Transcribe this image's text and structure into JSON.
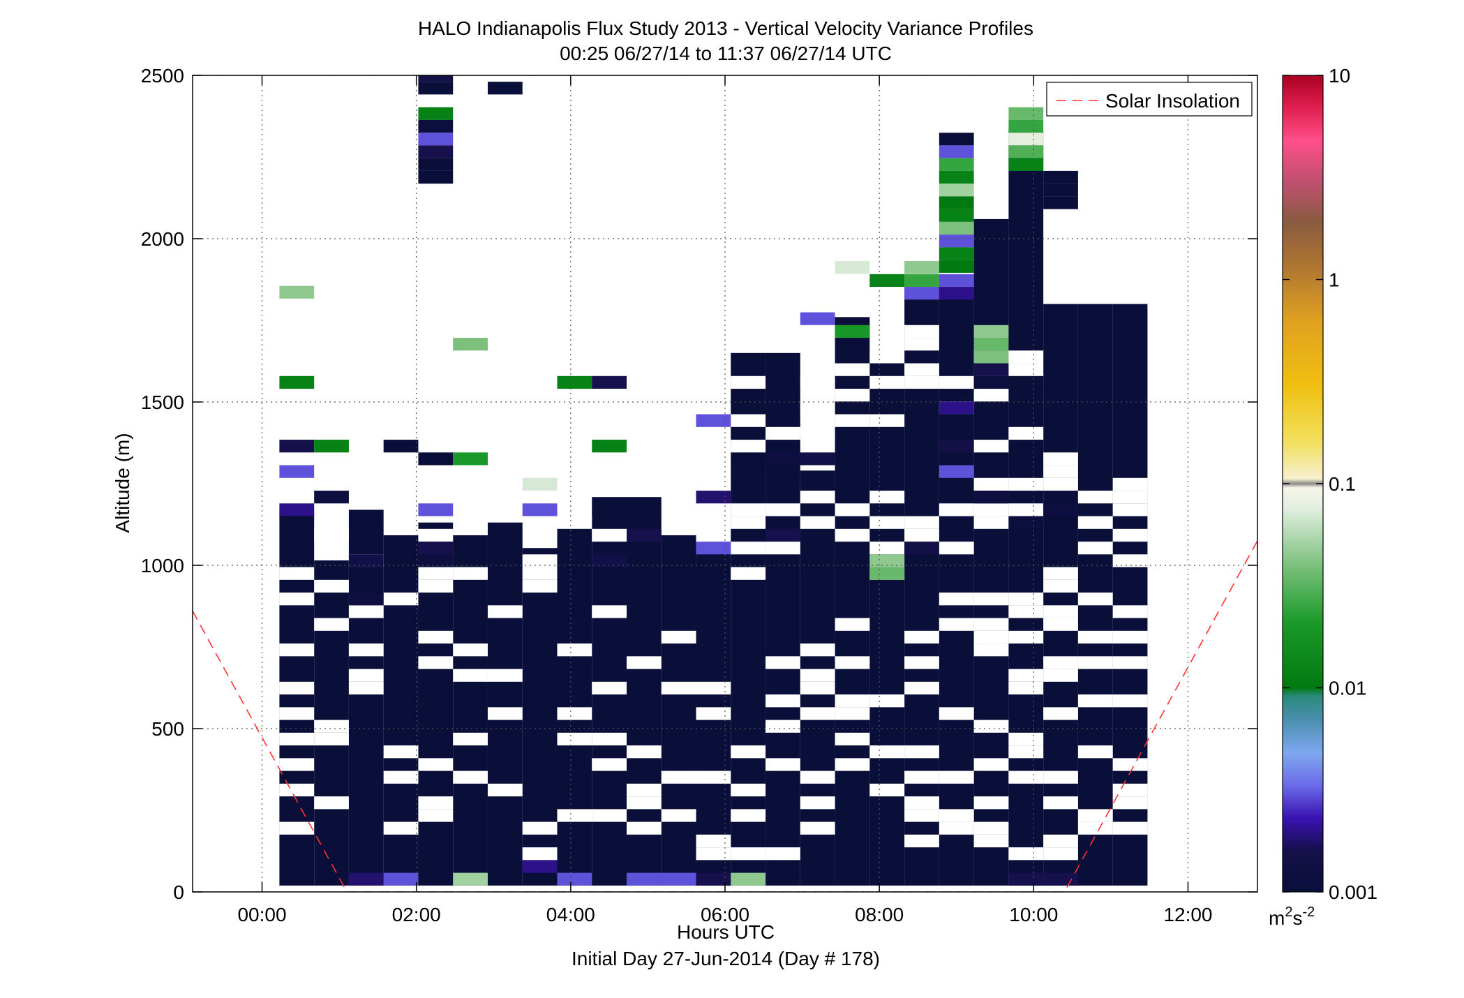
{
  "chart_data": {
    "type": "heatmap",
    "title": "HALO Indianapolis Flux Study 2013 - Vertical Velocity Variance Profiles",
    "subtitle": "00:25 06/27/14 to 11:37 06/27/14  UTC",
    "xlabel": "Hours UTC",
    "xlabel2": "Initial Day 27-Jun-2014 (Day # 178)",
    "ylabel": "Altitude (m)",
    "xlim": [
      -0.9,
      12.9
    ],
    "ylim": [
      0,
      2500
    ],
    "x_ticks": [
      0,
      2,
      4,
      6,
      8,
      10,
      12
    ],
    "x_tick_labels": [
      "00:00",
      "02:00",
      "04:00",
      "06:00",
      "08:00",
      "10:00",
      "12:00"
    ],
    "y_ticks": [
      0,
      500,
      1000,
      1500,
      2000,
      2500
    ],
    "y_tick_labels": [
      "0",
      "500",
      "1000",
      "1500",
      "2000",
      "2500"
    ],
    "grid": true,
    "legend": {
      "entry": "Solar Insolation",
      "style": "dashed",
      "color": "#ff3030",
      "placement": "top-right"
    },
    "colorbar": {
      "scale": "log",
      "range": [
        0.001,
        10
      ],
      "tick_values": [
        0.001,
        0.01,
        0.1,
        1,
        10
      ],
      "tick_labels": [
        "0.001",
        "0.01",
        "0.1",
        "1",
        "10"
      ],
      "unit_base": "m",
      "unit_sup1": "2",
      "unit_mid": "s",
      "unit_sup2": "-2"
    },
    "bin_width_hours": 0.45,
    "bin_height_m": 39,
    "profile_times_h": [
      0.45,
      0.9,
      1.35,
      1.8,
      2.25,
      2.7,
      3.15,
      3.6,
      4.05,
      4.5,
      4.95,
      5.4,
      5.85,
      6.3,
      6.75,
      7.2,
      7.65,
      8.1,
      8.55,
      9.0,
      9.45,
      9.9,
      10.35,
      10.8,
      11.25
    ],
    "background_variance": 0.001,
    "background_ranges": [
      [
        [
          39,
          1170
        ]
      ],
      [
        [
          39,
          1015
        ]
      ],
      [
        [
          39,
          1170
        ]
      ],
      [
        [
          39,
          1092
        ]
      ],
      [
        [
          39,
          1131
        ]
      ],
      [
        [
          39,
          1092
        ]
      ],
      [
        [
          39,
          1131
        ]
      ],
      [
        [
          39,
          1053
        ]
      ],
      [
        [
          39,
          1131
        ]
      ],
      [
        [
          39,
          1209
        ]
      ],
      [
        [
          39,
          1209
        ]
      ],
      [
        [
          39,
          1092
        ]
      ],
      [
        [
          39,
          1053
        ]
      ],
      [
        [
          39,
          1650
        ]
      ],
      [
        [
          39,
          1650
        ]
      ],
      [
        [
          39,
          1290
        ]
      ],
      [
        [
          39,
          1760
        ]
      ],
      [
        [
          39,
          1650
        ]
      ],
      [
        [
          39,
          1850
        ]
      ],
      [
        [
          39,
          1850
        ]
      ],
      [
        [
          39,
          2060
        ]
      ],
      [
        [
          39,
          2330
        ]
      ],
      [
        [
          39,
          1800
        ]
      ],
      [
        [
          39,
          1800
        ]
      ],
      [
        [
          39,
          1800
        ]
      ]
    ],
    "blank_cells": [
      [
        0,
        195
      ],
      [
        0,
        312
      ],
      [
        0,
        390
      ],
      [
        0,
        468
      ],
      [
        0,
        546
      ],
      [
        0,
        624
      ],
      [
        0,
        741
      ],
      [
        0,
        897
      ],
      [
        0,
        975
      ],
      [
        1,
        273
      ],
      [
        1,
        468
      ],
      [
        1,
        507
      ],
      [
        1,
        819
      ],
      [
        1,
        936
      ],
      [
        1,
        1092
      ],
      [
        2,
        624
      ],
      [
        2,
        663
      ],
      [
        2,
        741
      ],
      [
        2,
        858
      ],
      [
        2,
        1014
      ],
      [
        3,
        195
      ],
      [
        3,
        351
      ],
      [
        3,
        429
      ],
      [
        3,
        897
      ],
      [
        4,
        234
      ],
      [
        4,
        273
      ],
      [
        4,
        390
      ],
      [
        4,
        702
      ],
      [
        4,
        780
      ],
      [
        4,
        936
      ],
      [
        4,
        975
      ],
      [
        4,
        1092
      ],
      [
        5,
        351
      ],
      [
        5,
        468
      ],
      [
        5,
        663
      ],
      [
        5,
        741
      ],
      [
        5,
        975
      ],
      [
        6,
        312
      ],
      [
        6,
        546
      ],
      [
        6,
        663
      ],
      [
        6,
        858
      ],
      [
        7,
        117
      ],
      [
        7,
        195
      ],
      [
        7,
        936
      ],
      [
        7,
        975
      ],
      [
        7,
        1014
      ],
      [
        8,
        234
      ],
      [
        8,
        468
      ],
      [
        8,
        546
      ],
      [
        8,
        741
      ],
      [
        8,
        1131
      ],
      [
        9,
        234
      ],
      [
        9,
        390
      ],
      [
        9,
        468
      ],
      [
        9,
        624
      ],
      [
        9,
        858
      ],
      [
        9,
        1092
      ],
      [
        10,
        195
      ],
      [
        10,
        273
      ],
      [
        10,
        312
      ],
      [
        10,
        429
      ],
      [
        10,
        702
      ],
      [
        11,
        234
      ],
      [
        11,
        351
      ],
      [
        11,
        624
      ],
      [
        11,
        780
      ],
      [
        12,
        117
      ],
      [
        12,
        156
      ],
      [
        12,
        351
      ],
      [
        12,
        546
      ],
      [
        12,
        624
      ],
      [
        13,
        117
      ],
      [
        13,
        234
      ],
      [
        13,
        312
      ],
      [
        13,
        429
      ],
      [
        13,
        975
      ],
      [
        13,
        1053
      ],
      [
        13,
        1131
      ],
      [
        13,
        1170
      ],
      [
        13,
        1365
      ],
      [
        13,
        1443
      ],
      [
        13,
        1560
      ],
      [
        14,
        117
      ],
      [
        14,
        390
      ],
      [
        14,
        507
      ],
      [
        14,
        585
      ],
      [
        14,
        702
      ],
      [
        14,
        1053
      ],
      [
        14,
        1170
      ],
      [
        14,
        1404
      ],
      [
        15,
        195
      ],
      [
        15,
        273
      ],
      [
        15,
        351
      ],
      [
        15,
        546
      ],
      [
        15,
        624
      ],
      [
        15,
        663
      ],
      [
        15,
        741
      ],
      [
        15,
        1131
      ],
      [
        15,
        1209
      ],
      [
        15,
        1404
      ],
      [
        15,
        1482
      ],
      [
        15,
        1560
      ],
      [
        16,
        390
      ],
      [
        16,
        468
      ],
      [
        16,
        546
      ],
      [
        16,
        585
      ],
      [
        16,
        702
      ],
      [
        16,
        819
      ],
      [
        16,
        1092
      ],
      [
        16,
        1170
      ],
      [
        16,
        1443
      ],
      [
        16,
        1521
      ],
      [
        16,
        1599
      ],
      [
        17,
        312
      ],
      [
        17,
        429
      ],
      [
        17,
        585
      ],
      [
        17,
        975
      ],
      [
        17,
        1053
      ],
      [
        17,
        1131
      ],
      [
        17,
        1209
      ],
      [
        17,
        1443
      ],
      [
        17,
        1560
      ],
      [
        17,
        1638
      ],
      [
        18,
        156
      ],
      [
        18,
        234
      ],
      [
        18,
        273
      ],
      [
        18,
        351
      ],
      [
        18,
        429
      ],
      [
        18,
        624
      ],
      [
        18,
        702
      ],
      [
        18,
        780
      ],
      [
        18,
        1092
      ],
      [
        18,
        1131
      ],
      [
        18,
        1560
      ],
      [
        18,
        1599
      ],
      [
        18,
        1677
      ],
      [
        18,
        1716
      ],
      [
        19,
        195
      ],
      [
        19,
        234
      ],
      [
        19,
        351
      ],
      [
        19,
        546
      ],
      [
        19,
        819
      ],
      [
        19,
        897
      ],
      [
        19,
        1053
      ],
      [
        19,
        1170
      ],
      [
        19,
        1482
      ],
      [
        19,
        1560
      ],
      [
        20,
        156
      ],
      [
        20,
        195
      ],
      [
        20,
        273
      ],
      [
        20,
        390
      ],
      [
        20,
        507
      ],
      [
        20,
        741
      ],
      [
        20,
        780
      ],
      [
        20,
        819
      ],
      [
        20,
        897
      ],
      [
        20,
        1131
      ],
      [
        20,
        1170
      ],
      [
        20,
        1248
      ],
      [
        20,
        1365
      ],
      [
        20,
        1521
      ],
      [
        20,
        1599
      ],
      [
        20,
        1638
      ],
      [
        21,
        117
      ],
      [
        21,
        351
      ],
      [
        21,
        429
      ],
      [
        21,
        468
      ],
      [
        21,
        624
      ],
      [
        21,
        663
      ],
      [
        21,
        780
      ],
      [
        21,
        858
      ],
      [
        21,
        897
      ],
      [
        21,
        1170
      ],
      [
        21,
        1248
      ],
      [
        21,
        1404
      ],
      [
        21,
        1599
      ],
      [
        21,
        1638
      ],
      [
        22,
        117
      ],
      [
        22,
        156
      ],
      [
        22,
        273
      ],
      [
        22,
        351
      ],
      [
        22,
        546
      ],
      [
        22,
        663
      ],
      [
        22,
        702
      ],
      [
        22,
        819
      ],
      [
        22,
        858
      ],
      [
        22,
        936
      ],
      [
        22,
        975
      ],
      [
        22,
        1248
      ],
      [
        22,
        1287
      ],
      [
        22,
        1326
      ],
      [
        23,
        195
      ],
      [
        23,
        234
      ],
      [
        23,
        429
      ],
      [
        23,
        585
      ],
      [
        23,
        702
      ],
      [
        23,
        780
      ],
      [
        23,
        897
      ],
      [
        23,
        1053
      ],
      [
        23,
        1131
      ],
      [
        23,
        1209
      ],
      [
        24,
        195
      ],
      [
        24,
        273
      ],
      [
        24,
        312
      ],
      [
        24,
        390
      ],
      [
        24,
        585
      ],
      [
        24,
        702
      ],
      [
        24,
        780
      ],
      [
        24,
        858
      ],
      [
        24,
        1014
      ],
      [
        24,
        1092
      ],
      [
        24,
        1170
      ],
      [
        24,
        1209
      ],
      [
        24,
        1248
      ]
    ],
    "colored_cells": [
      [
        0,
        1836,
        0.045
      ],
      [
        0,
        1560,
        0.012
      ],
      [
        0,
        1365,
        0.0016
      ],
      [
        0,
        1287,
        0.003
      ],
      [
        0,
        1170,
        0.002
      ],
      [
        1,
        1365,
        0.012
      ],
      [
        1,
        1209,
        0.0012
      ],
      [
        2,
        39,
        0.0018
      ],
      [
        2,
        1014,
        0.0014
      ],
      [
        2,
        897,
        0.0012
      ],
      [
        3,
        39,
        0.003
      ],
      [
        3,
        1365,
        0.001
      ],
      [
        4,
        2500,
        0.0015
      ],
      [
        4,
        2461,
        0.001
      ],
      [
        4,
        2383,
        0.012
      ],
      [
        4,
        2344,
        0.0011
      ],
      [
        4,
        2305,
        0.003
      ],
      [
        4,
        2266,
        0.0016
      ],
      [
        4,
        2227,
        0.001
      ],
      [
        4,
        2188,
        0.001
      ],
      [
        4,
        1053,
        0.0016
      ],
      [
        4,
        1014,
        0.0012
      ],
      [
        4,
        1326,
        0.001
      ],
      [
        4,
        1170,
        0.003
      ],
      [
        5,
        1677,
        0.04
      ],
      [
        5,
        1326,
        0.02
      ],
      [
        5,
        39,
        0.05
      ],
      [
        6,
        2461,
        0.001
      ],
      [
        7,
        1248,
        0.07
      ],
      [
        7,
        1170,
        0.003
      ],
      [
        7,
        78,
        0.002
      ],
      [
        8,
        1560,
        0.012
      ],
      [
        8,
        39,
        0.003
      ],
      [
        9,
        1560,
        0.0016
      ],
      [
        9,
        1365,
        0.012
      ],
      [
        9,
        1014,
        0.0014
      ],
      [
        10,
        1092,
        0.0016
      ],
      [
        10,
        39,
        0.003
      ],
      [
        11,
        39,
        0.003
      ],
      [
        12,
        1443,
        0.003
      ],
      [
        12,
        1209,
        0.0018
      ],
      [
        12,
        1053,
        0.003
      ],
      [
        12,
        39,
        0.0016
      ],
      [
        13,
        39,
        0.045
      ],
      [
        14,
        1092,
        0.0016
      ],
      [
        14,
        1326,
        0.0012
      ],
      [
        15,
        1326,
        0.0014
      ],
      [
        15,
        1755,
        0.003
      ],
      [
        16,
        1912,
        0.07
      ],
      [
        16,
        1716,
        0.02
      ],
      [
        17,
        1872,
        0.012
      ],
      [
        17,
        1014,
        0.045
      ],
      [
        17,
        975,
        0.035
      ],
      [
        18,
        1912,
        0.045
      ],
      [
        18,
        1872,
        0.025
      ],
      [
        18,
        1833,
        0.003
      ],
      [
        18,
        1053,
        0.0014
      ],
      [
        19,
        2305,
        0.001
      ],
      [
        19,
        2266,
        0.003
      ],
      [
        19,
        2227,
        0.025
      ],
      [
        19,
        2188,
        0.012
      ],
      [
        19,
        2149,
        0.05
      ],
      [
        19,
        2110,
        0.01
      ],
      [
        19,
        2071,
        0.012
      ],
      [
        19,
        2032,
        0.04
      ],
      [
        19,
        1993,
        0.003
      ],
      [
        19,
        1954,
        0.012
      ],
      [
        19,
        1915,
        0.01
      ],
      [
        19,
        1872,
        0.003
      ],
      [
        19,
        1833,
        0.002
      ],
      [
        19,
        1482,
        0.002
      ],
      [
        19,
        1365,
        0.0014
      ],
      [
        19,
        1287,
        0.003
      ],
      [
        20,
        1716,
        0.045
      ],
      [
        20,
        1677,
        0.035
      ],
      [
        20,
        1638,
        0.04
      ],
      [
        20,
        1599,
        0.0016
      ],
      [
        20,
        1560,
        0.0011
      ],
      [
        20,
        1209,
        0.0012
      ],
      [
        21,
        2383,
        0.035
      ],
      [
        21,
        2344,
        0.025
      ],
      [
        21,
        2305,
        0.08
      ],
      [
        21,
        2266,
        0.03
      ],
      [
        21,
        2227,
        0.012
      ],
      [
        21,
        1131,
        0.0011
      ],
      [
        21,
        39,
        0.0016
      ],
      [
        22,
        2110,
        0.001
      ],
      [
        22,
        2149,
        0.001
      ],
      [
        22,
        2188,
        0.001
      ],
      [
        22,
        1170,
        0.0012
      ],
      [
        22,
        39,
        0.0016
      ]
    ],
    "solar_insolation_line": [
      [
        -0.9,
        860
      ],
      [
        1.1,
        0
      ],
      [
        10.4,
        0
      ],
      [
        12.9,
        1075
      ]
    ]
  }
}
